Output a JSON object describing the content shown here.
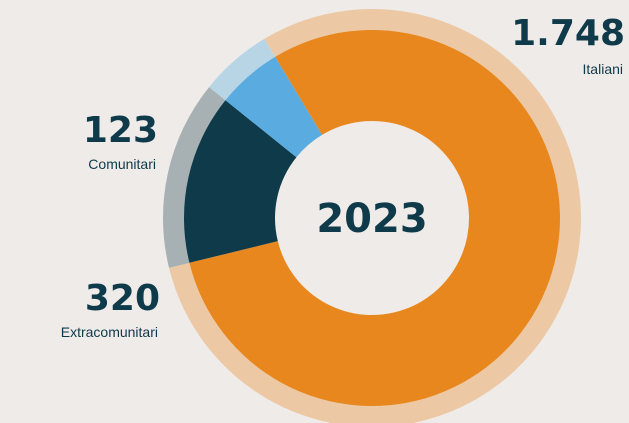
{
  "chart_data": {
    "type": "donut",
    "center_label": "2023",
    "categories": [
      "Italiani",
      "Extracomunitari",
      "Comunitari"
    ],
    "values": [
      1748,
      320,
      123
    ],
    "value_labels": [
      "1.748",
      "320",
      "123"
    ],
    "colors": [
      "#e8871e",
      "#0f3a4a",
      "#5aabdf"
    ],
    "ring_colors": [
      "#ecc9a4",
      "#a7b1b4",
      "#b8d5e6"
    ]
  }
}
